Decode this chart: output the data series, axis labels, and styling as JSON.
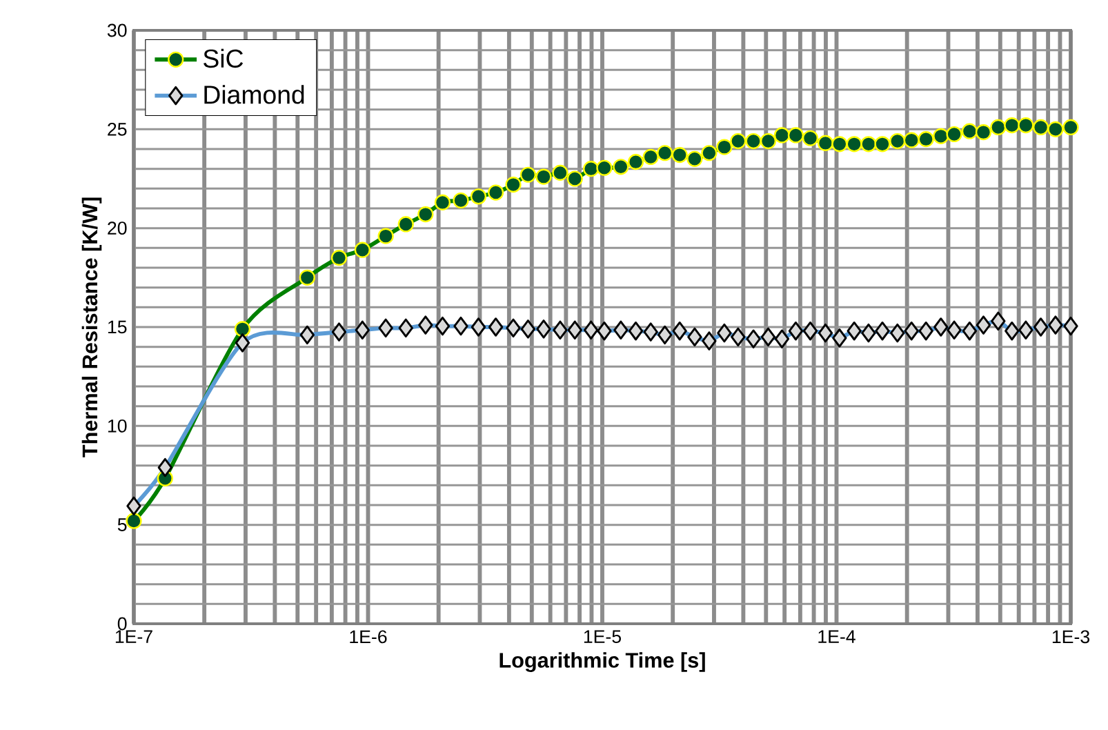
{
  "chart_data": {
    "type": "line",
    "xlabel": "Logarithmic Time [s]",
    "ylabel": "Thermal Resistance [K/W]",
    "log": "x",
    "grid": true,
    "legend": "top left",
    "xlim": [
      1e-07,
      0.001
    ],
    "ylim": [
      0,
      30
    ],
    "xticks": [
      {
        "value": 1e-07,
        "label": "1E-7"
      },
      {
        "value": 1e-06,
        "label": "1E-6"
      },
      {
        "value": 1e-05,
        "label": "1E-5"
      },
      {
        "value": 0.0001,
        "label": "1E-4"
      },
      {
        "value": 0.001,
        "label": "1E-3"
      }
    ],
    "yticks": [
      0,
      5,
      10,
      15,
      20,
      25,
      30
    ],
    "x": [
      1e-07,
      1.36e-07,
      2.91e-07,
      5.5e-07,
      7.52e-07,
      9.46e-07,
      1.19e-06,
      1.45e-06,
      1.76e-06,
      2.08e-06,
      2.49e-06,
      2.96e-06,
      3.51e-06,
      4.17e-06,
      4.82e-06,
      5.62e-06,
      6.61e-06,
      7.64e-06,
      8.95e-06,
      1.02e-05,
      1.2e-05,
      1.39e-05,
      1.61e-05,
      1.85e-05,
      2.14e-05,
      2.48e-05,
      2.86e-05,
      3.32e-05,
      3.8e-05,
      4.42e-05,
      5.11e-05,
      5.85e-05,
      6.7e-05,
      7.73e-05,
      8.97e-05,
      0.000103,
      0.000119,
      0.000137,
      0.000157,
      0.000182,
      0.000209,
      0.000241,
      0.000279,
      0.000318,
      0.00037,
      0.000424,
      0.00049,
      0.000561,
      0.000643,
      0.000745,
      0.000861,
      0.001
    ],
    "series": [
      {
        "name": "SiC",
        "color": "#008000",
        "marker": "circle",
        "values": [
          5.2,
          7.35,
          14.9,
          17.5,
          18.5,
          18.9,
          19.6,
          20.2,
          20.7,
          21.3,
          21.4,
          21.6,
          21.8,
          22.2,
          22.7,
          22.6,
          22.8,
          22.5,
          23.0,
          23.05,
          23.1,
          23.35,
          23.6,
          23.8,
          23.7,
          23.5,
          23.8,
          24.1,
          24.4,
          24.4,
          24.4,
          24.7,
          24.7,
          24.55,
          24.3,
          24.25,
          24.25,
          24.25,
          24.25,
          24.4,
          24.45,
          24.5,
          24.65,
          24.75,
          24.9,
          24.85,
          25.1,
          25.2,
          25.2,
          25.1,
          25.0,
          25.1
        ]
      },
      {
        "name": "Diamond",
        "color": "#5b9bd5",
        "marker": "diamond",
        "values": [
          5.95,
          7.9,
          14.2,
          14.6,
          14.75,
          14.85,
          14.95,
          14.95,
          15.1,
          15.05,
          15.05,
          15.0,
          15.0,
          14.95,
          14.9,
          14.9,
          14.85,
          14.85,
          14.85,
          14.8,
          14.85,
          14.8,
          14.75,
          14.6,
          14.8,
          14.5,
          14.3,
          14.7,
          14.5,
          14.4,
          14.5,
          14.4,
          14.8,
          14.8,
          14.7,
          14.45,
          14.8,
          14.7,
          14.8,
          14.7,
          14.8,
          14.8,
          15.0,
          14.85,
          14.8,
          15.1,
          15.3,
          14.8,
          14.85,
          15.0,
          15.1,
          15.05
        ]
      }
    ]
  }
}
